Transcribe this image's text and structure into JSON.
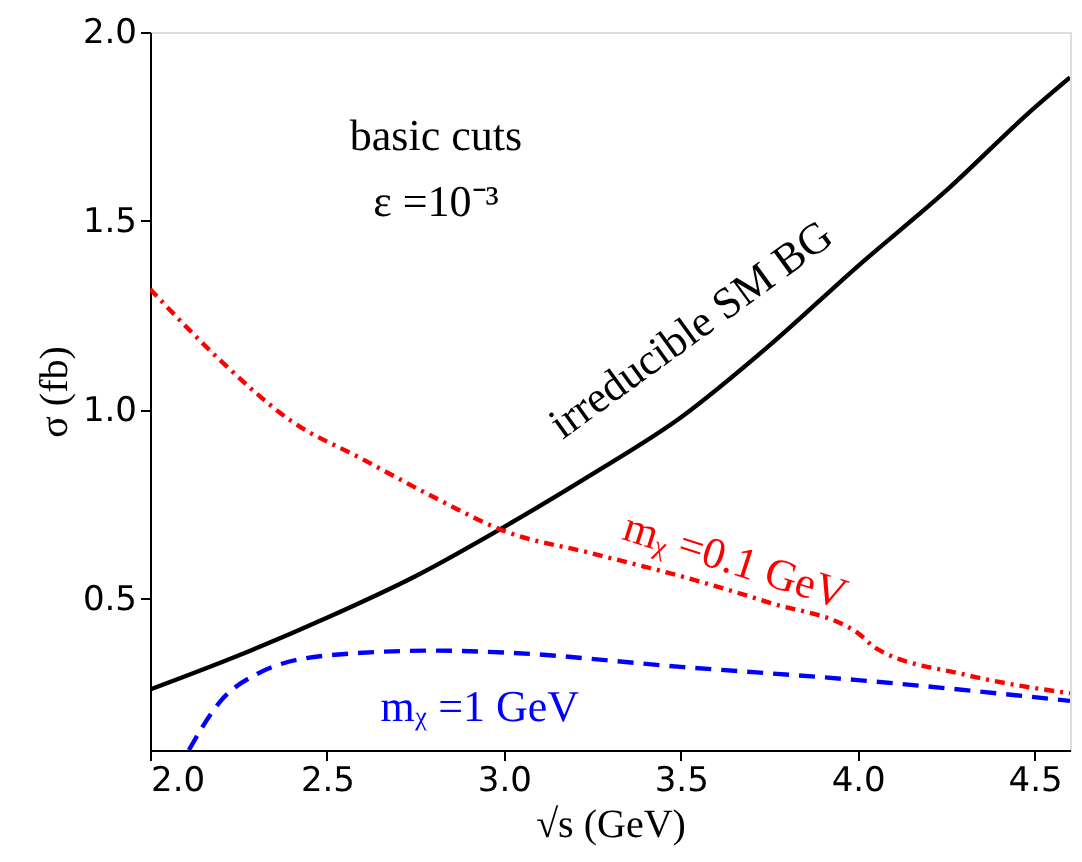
{
  "chart_data": {
    "type": "line",
    "xlabel": "√s (GeV)",
    "ylabel": "σ (fb)",
    "annotations": [
      "basic cuts",
      "ε =10⁻³"
    ],
    "xlim": [
      2.0,
      4.6
    ],
    "ylim": [
      0.1,
      2.0
    ],
    "xticks": [
      {
        "value": 2,
        "label": "2.0"
      },
      2.5,
      {
        "value": 3,
        "label": "3.0"
      },
      3.5,
      {
        "value": 4,
        "label": "4.0"
      },
      4.5
    ],
    "yticks": [
      0.5,
      {
        "value": 1,
        "label": "1.0"
      },
      1.5,
      {
        "value": 2,
        "label": "2.0"
      }
    ],
    "grid": false,
    "marker": "none",
    "series": [
      {
        "name": "irreducible SM BG",
        "color": "#000000",
        "line_style": "solid",
        "x": [
          2.0,
          2.25,
          2.5,
          2.75,
          3.0,
          3.25,
          3.5,
          3.75,
          4.0,
          4.25,
          4.5,
          4.6
        ],
        "values": [
          0.26,
          0.35,
          0.45,
          0.56,
          0.69,
          0.83,
          0.98,
          1.17,
          1.38,
          1.58,
          1.8,
          1.88
        ]
      },
      {
        "name": "mᵪ =0.1 GeV",
        "color": "#ff0000",
        "line_style": "dotted",
        "x": [
          2.0,
          2.2,
          2.4,
          2.6,
          2.8,
          3.0,
          3.25,
          3.5,
          3.75,
          4.0,
          4.05,
          4.3,
          4.6
        ],
        "values": [
          1.32,
          1.13,
          0.97,
          0.87,
          0.77,
          0.68,
          0.62,
          0.56,
          0.49,
          0.41,
          0.37,
          0.3,
          0.25
        ]
      },
      {
        "name": "mᵪ =1 GeV",
        "color": "#0000ff",
        "line_style": "dashed",
        "x": [
          2.11,
          2.2,
          2.3,
          2.5,
          2.8,
          3.0,
          3.5,
          4.0,
          4.6
        ],
        "values": [
          0.1,
          0.23,
          0.3,
          0.35,
          0.363,
          0.358,
          0.32,
          0.285,
          0.23
        ]
      }
    ]
  }
}
